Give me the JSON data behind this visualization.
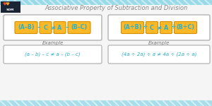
{
  "title": "Associative Property of Subtraction and Division",
  "title_color": "#888888",
  "bg_color": "#f5f5f5",
  "stripe_color": "#5cc8e0",
  "logo_bg": "#1a2535",
  "orange": "#FDB827",
  "orange_border": "#d49000",
  "cyan_text": "#28b0cc",
  "box_border": "#aaaaaa",
  "left_formula_boxes": [
    "(A–B)",
    "C",
    "A",
    "(B–C)"
  ],
  "left_formula_ops": [
    "–",
    "≠",
    "–"
  ],
  "right_formula_boxes": [
    "(A÷B)",
    "C",
    "A",
    "(B÷C)"
  ],
  "right_formula_ops": [
    "÷",
    "≠",
    "÷"
  ],
  "left_example": "(a – b) – c ≠ a – (b – c)",
  "right_example": "(4a ÷ 2a) ÷ a ≠ 4a ÷ (2a ÷ a)",
  "example_label": "Example"
}
